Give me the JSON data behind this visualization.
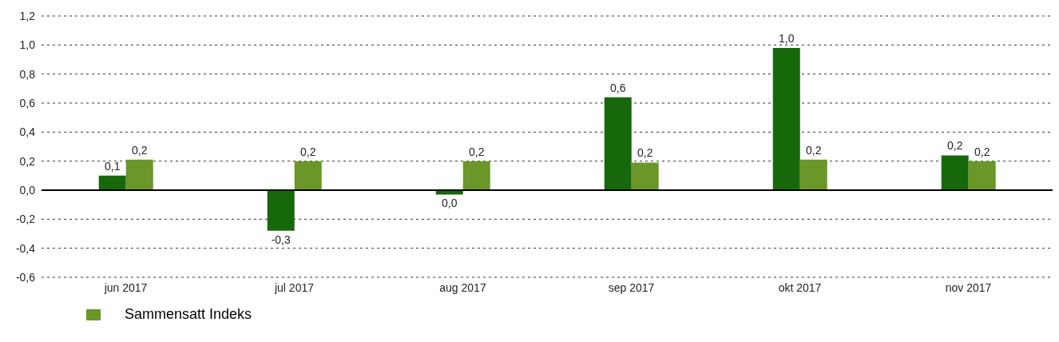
{
  "chart_data": {
    "type": "bar",
    "categories": [
      "jun 2017",
      "jul 2017",
      "aug 2017",
      "sep 2017",
      "okt 2017",
      "nov 2017"
    ],
    "series": [
      {
        "color": "#16680a",
        "values": [
          0.1,
          -0.28,
          -0.03,
          0.64,
          0.98,
          0.24
        ],
        "value_labels": [
          "0,1",
          "-0,3",
          "0,0",
          "0,6",
          "1,0",
          "0,2"
        ]
      },
      {
        "name": "Sammensatt Indeks",
        "color": "#6b962a",
        "values": [
          0.21,
          0.2,
          0.2,
          0.19,
          0.21,
          0.2
        ],
        "value_labels": [
          "0,2",
          "0,2",
          "0,2",
          "0,2",
          "0,2",
          "0,2"
        ]
      }
    ],
    "ylim": [
      -0.6,
      1.2
    ],
    "yticks": [
      {
        "value": -0.6,
        "label": "-0,6"
      },
      {
        "value": -0.4,
        "label": "-0,4"
      },
      {
        "value": -0.2,
        "label": "-0,2"
      },
      {
        "value": 0,
        "label": "0,0"
      },
      {
        "value": 0.2,
        "label": "0,2"
      },
      {
        "value": 0.4,
        "label": "0,4"
      },
      {
        "value": 0.6,
        "label": "0,6"
      },
      {
        "value": 0.8,
        "label": "0,8"
      },
      {
        "value": 1,
        "label": "1,0"
      },
      {
        "value": 1.2,
        "label": "1,2"
      }
    ],
    "ref_lines": [
      {
        "axis": "y",
        "value": 0,
        "color": "#000000"
      }
    ],
    "grid": "y",
    "legend": "bottom left"
  }
}
